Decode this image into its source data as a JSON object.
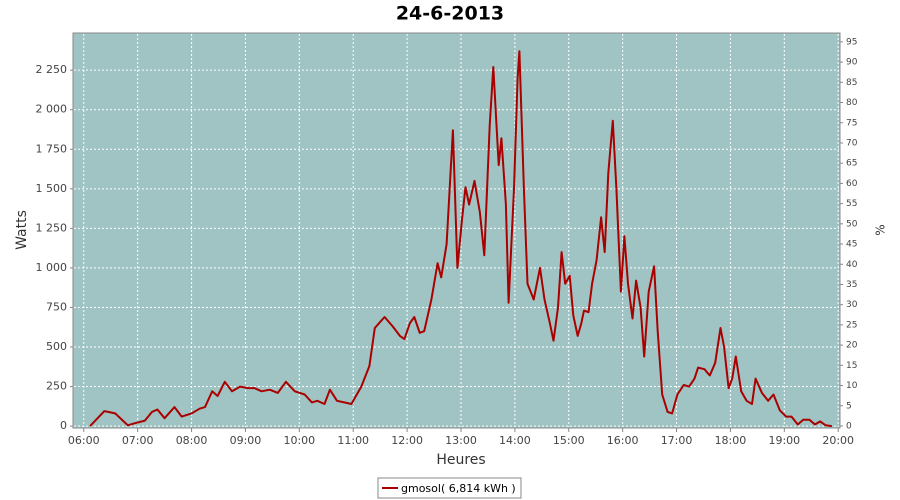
{
  "chart_data": {
    "type": "line",
    "title": "24-6-2013",
    "x_label": "Heures",
    "y_label": "Watts",
    "y2_label": "%",
    "x": [
      "06:07",
      "06:23",
      "06:35",
      "06:49",
      "06:55",
      "07:08",
      "07:16",
      "07:22",
      "07:30",
      "07:41",
      "07:49",
      "08:00",
      "08:09",
      "08:15",
      "08:23",
      "08:29",
      "08:37",
      "08:45",
      "08:54",
      "09:03",
      "09:10",
      "09:18",
      "09:27",
      "09:36",
      "09:45",
      "09:55",
      "10:06",
      "10:14",
      "10:20",
      "10:28",
      "10:34",
      "10:42",
      "10:50",
      "10:58",
      "11:09",
      "11:18",
      "11:24",
      "11:35",
      "11:44",
      "11:52",
      "11:57",
      "12:03",
      "12:08",
      "12:14",
      "12:19",
      "12:27",
      "12:34",
      "12:38",
      "12:44",
      "12:51",
      "12:56",
      "13:01",
      "13:05",
      "13:09",
      "13:15",
      "13:21",
      "13:26",
      "13:32",
      "13:36",
      "13:42",
      "13:45",
      "13:50",
      "13:53",
      "13:59",
      "14:03",
      "14:05",
      "14:10",
      "14:14",
      "14:21",
      "14:28",
      "14:33",
      "14:39",
      "14:43",
      "14:48",
      "14:52",
      "14:56",
      "15:01",
      "15:05",
      "15:10",
      "15:14",
      "15:17",
      "15:22",
      "15:26",
      "15:31",
      "15:36",
      "15:40",
      "15:44",
      "15:49",
      "15:53",
      "15:58",
      "16:02",
      "16:06",
      "16:11",
      "16:15",
      "16:20",
      "16:24",
      "16:29",
      "16:35",
      "16:39",
      "16:44",
      "16:50",
      "16:55",
      "17:01",
      "17:08",
      "17:14",
      "17:20",
      "17:24",
      "17:31",
      "17:37",
      "17:43",
      "17:49",
      "17:53",
      "17:58",
      "18:02",
      "18:06",
      "18:12",
      "18:18",
      "18:24",
      "18:28",
      "18:35",
      "18:42",
      "18:48",
      "18:55",
      "19:02",
      "19:08",
      "19:15",
      "19:21",
      "19:28",
      "19:34",
      "19:40",
      "19:46",
      "19:53"
    ],
    "series": [
      {
        "name": "gmosol( 6,814 kWh )",
        "color": "#aa0000",
        "values": [
          0,
          95,
          80,
          5,
          15,
          35,
          90,
          105,
          50,
          120,
          60,
          80,
          110,
          120,
          220,
          190,
          280,
          220,
          250,
          240,
          240,
          220,
          230,
          210,
          280,
          220,
          200,
          150,
          160,
          140,
          230,
          160,
          150,
          140,
          250,
          380,
          620,
          690,
          630,
          570,
          550,
          650,
          690,
          590,
          600,
          800,
          1030,
          940,
          1150,
          1870,
          1000,
          1300,
          1510,
          1400,
          1550,
          1350,
          1080,
          1900,
          2270,
          1650,
          1820,
          1400,
          780,
          1500,
          2200,
          2370,
          1500,
          900,
          800,
          1000,
          800,
          650,
          540,
          750,
          1100,
          900,
          950,
          700,
          570,
          650,
          730,
          720,
          900,
          1050,
          1320,
          1100,
          1600,
          1930,
          1500,
          850,
          1200,
          900,
          680,
          920,
          750,
          440,
          850,
          1010,
          600,
          200,
          90,
          80,
          200,
          260,
          250,
          300,
          370,
          360,
          320,
          400,
          620,
          500,
          240,
          300,
          440,
          220,
          160,
          140,
          300,
          210,
          160,
          200,
          100,
          60,
          60,
          10,
          40,
          40,
          10,
          30,
          5,
          0
        ]
      }
    ],
    "xlim": [
      "05:48",
      "20:02"
    ],
    "xticks": [
      "06:00",
      "07:00",
      "08:00",
      "09:00",
      "10:00",
      "11:00",
      "12:00",
      "13:00",
      "14:00",
      "15:00",
      "16:00",
      "17:00",
      "18:00",
      "19:00",
      "20:00"
    ],
    "ylim": [
      -12,
      2485
    ],
    "yticks": [
      0,
      250,
      500,
      750,
      {
        "value": 1000,
        "label": "1 000"
      },
      {
        "value": 1250,
        "label": "1 250"
      },
      {
        "value": 1500,
        "label": "1 500"
      },
      {
        "value": 1750,
        "label": "1 750"
      },
      {
        "value": 2000,
        "label": "2 000"
      },
      {
        "value": 2250,
        "label": "2 250"
      }
    ],
    "y2lim": [
      -0.5,
      97.2
    ],
    "y2ticks": [
      0,
      5,
      10,
      15,
      20,
      25,
      30,
      35,
      40,
      45,
      50,
      55,
      60,
      65,
      70,
      75,
      80,
      85,
      90,
      95
    ],
    "grid": true,
    "plot_background": "#a0c4c4"
  }
}
